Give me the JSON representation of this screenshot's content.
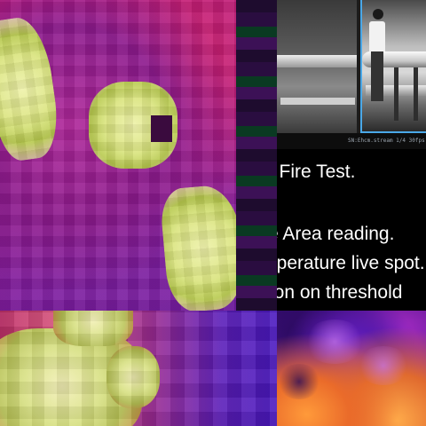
{
  "camera": {
    "overlay_text": "",
    "status_text": "SN:Ehcm.stream 1/4 30fps 1080 1080"
  },
  "slide": {
    "lines": [
      "l Fire Test.",
      "e Area reading.",
      "nperature live spot.",
      "ion on threshold"
    ]
  },
  "colors": {
    "accent_frame": "#4aa8e8",
    "overlay_red": "#e33a3a",
    "thermal_hot": "#eef1a8",
    "thermal_mid": "#c81c7c",
    "thermal_cool": "#6e1ca8"
  }
}
